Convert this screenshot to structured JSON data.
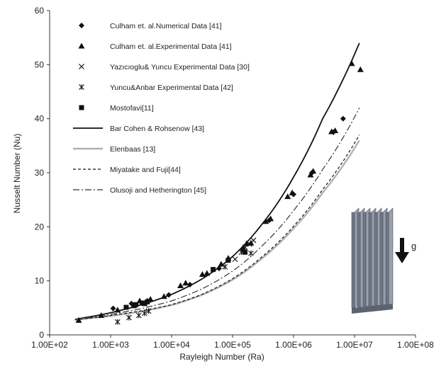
{
  "chart_data": {
    "type": "scatter",
    "xlabel": "Rayleigh Number (Ra)",
    "ylabel": "Nusselt Number (Nu)",
    "x_scale": "log",
    "xlim": [
      100,
      100000000
    ],
    "ylim": [
      0,
      60
    ],
    "x_ticks": [
      100,
      1000,
      10000,
      100000,
      1000000,
      10000000,
      100000000
    ],
    "x_tick_labels": [
      "1.00E+02",
      "1.00E+03",
      "1.00E+04",
      "1.00E+05",
      "1.00E+06",
      "1.00E+07",
      "1.00E+08"
    ],
    "y_ticks": [
      0,
      10,
      20,
      30,
      40,
      50,
      60
    ],
    "y_tick_labels": [
      "0",
      "10",
      "20",
      "30",
      "40",
      "50",
      "60"
    ],
    "grid": false,
    "legend_position": "top-left",
    "series": [
      {
        "name": "Culham et. al.Numerical Data [41]",
        "marker": "diamond",
        "points": [
          [
            1100,
            4.9
          ],
          [
            2200,
            5.8
          ],
          [
            4000,
            6.3
          ],
          [
            9000,
            7.4
          ],
          [
            20000,
            9.3
          ],
          [
            60000,
            12.3
          ],
          [
            150000,
            15.7
          ],
          [
            400000,
            21.2
          ],
          [
            1000000,
            26.0
          ],
          [
            2000000,
            30.0
          ],
          [
            4500000,
            37.5
          ],
          [
            6500000,
            40.0
          ]
        ]
      },
      {
        "name": "Culham et. al.Experimental Data [41]",
        "marker": "triangle",
        "points": [
          [
            300,
            2.7
          ],
          [
            700,
            3.6
          ],
          [
            1300,
            4.6
          ],
          [
            2400,
            5.4
          ],
          [
            3000,
            6.3
          ],
          [
            3600,
            5.8
          ],
          [
            4500,
            6.6
          ],
          [
            7500,
            7.1
          ],
          [
            14000,
            9.1
          ],
          [
            17000,
            9.6
          ],
          [
            32000,
            11.2
          ],
          [
            38000,
            11.4
          ],
          [
            65000,
            13.1
          ],
          [
            85000,
            14.2
          ],
          [
            150000,
            16.0
          ],
          [
            170000,
            16.9
          ],
          [
            200000,
            17.0
          ],
          [
            350000,
            21.0
          ],
          [
            420000,
            21.5
          ],
          [
            800000,
            25.6
          ],
          [
            950000,
            26.3
          ],
          [
            1900000,
            29.6
          ],
          [
            2100000,
            30.3
          ],
          [
            4200000,
            37.6
          ],
          [
            4800000,
            37.8
          ],
          [
            9000000,
            50.2
          ],
          [
            12500000,
            49.1
          ]
        ]
      },
      {
        "name": "Yazıcıoglu& Yuncu Experimental Data [30]",
        "marker": "x",
        "points": [
          [
            110000,
            14.0
          ],
          [
            160000,
            16.2
          ],
          [
            190000,
            16.8
          ],
          [
            220000,
            17.5
          ]
        ]
      },
      {
        "name": "Yuncu&Anbar Experimental Data [42]",
        "marker": "asterisk",
        "points": [
          [
            1300,
            2.4
          ],
          [
            2000,
            3.2
          ],
          [
            2900,
            3.6
          ],
          [
            3600,
            4.0
          ],
          [
            4200,
            4.4
          ],
          [
            75000,
            12.6
          ],
          [
            140000,
            15.3
          ],
          [
            200000,
            15.1
          ]
        ]
      },
      {
        "name": "Mostofavi[11]",
        "marker": "square",
        "points": [
          [
            1800,
            5.1
          ],
          [
            2600,
            5.6
          ],
          [
            3300,
            5.9
          ],
          [
            4000,
            6.1
          ],
          [
            48000,
            12.1
          ],
          [
            85000,
            13.8
          ],
          [
            160000,
            15.3
          ]
        ]
      },
      {
        "name": "Bar Cohen & Rohsenow [43]",
        "line": "solid",
        "points": [
          [
            260,
            2.9
          ],
          [
            1000,
            4.1
          ],
          [
            3000,
            5.5
          ],
          [
            10000,
            7.5
          ],
          [
            30000,
            10.2
          ],
          [
            100000,
            14.5
          ],
          [
            300000,
            20.4
          ],
          [
            1000000,
            29.2
          ],
          [
            3000000,
            40.0
          ],
          [
            12000000,
            54.0
          ]
        ]
      },
      {
        "name": "Elenbaas [13]",
        "line": "light",
        "points": [
          [
            260,
            2.8
          ],
          [
            1000,
            3.5
          ],
          [
            3000,
            4.3
          ],
          [
            10000,
            5.5
          ],
          [
            30000,
            7.3
          ],
          [
            100000,
            10.2
          ],
          [
            300000,
            14.1
          ],
          [
            1000000,
            19.7
          ],
          [
            3000000,
            26.3
          ],
          [
            12000000,
            36.0
          ]
        ]
      },
      {
        "name": "Miyatake and Fuji[44]",
        "line": "dashed",
        "points": [
          [
            260,
            2.8
          ],
          [
            1000,
            3.6
          ],
          [
            3000,
            4.4
          ],
          [
            10000,
            5.6
          ],
          [
            30000,
            7.4
          ],
          [
            100000,
            10.4
          ],
          [
            300000,
            14.4
          ],
          [
            1000000,
            20.1
          ],
          [
            3000000,
            26.9
          ],
          [
            12000000,
            37.0
          ]
        ]
      },
      {
        "name": "Olusoji and Hetherington [45]",
        "line": "dashdot",
        "points": [
          [
            260,
            2.8
          ],
          [
            1000,
            3.8
          ],
          [
            3000,
            4.8
          ],
          [
            10000,
            6.3
          ],
          [
            30000,
            8.4
          ],
          [
            100000,
            11.8
          ],
          [
            300000,
            16.4
          ],
          [
            1000000,
            23.0
          ],
          [
            3000000,
            30.6
          ],
          [
            12000000,
            42.0
          ]
        ]
      }
    ],
    "inset": {
      "label": "g",
      "icon": "vertical-fin-array"
    },
    "colors": {
      "series": "#111111",
      "elenbaas": "#b0b0b0",
      "fin_front": "#6f7785",
      "fin_side": "#9aa1ad"
    }
  }
}
